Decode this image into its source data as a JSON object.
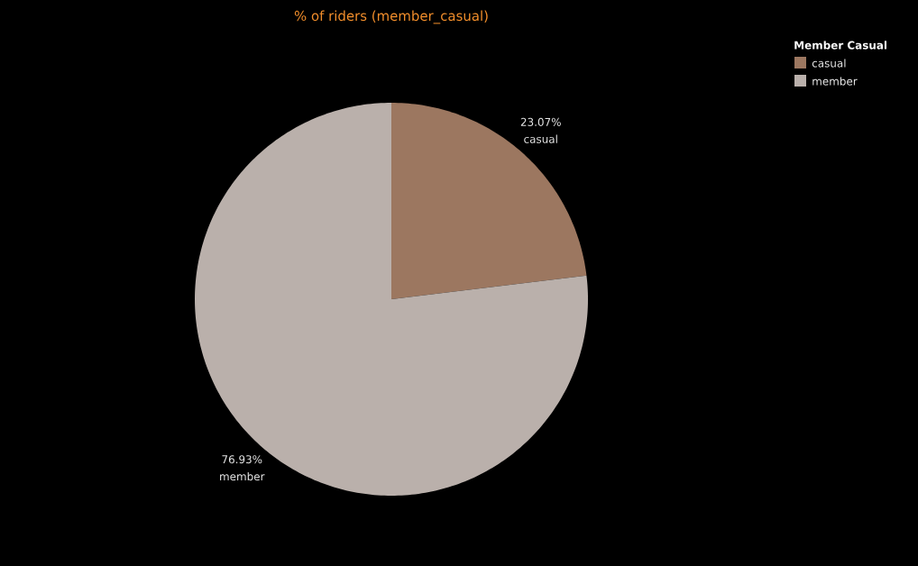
{
  "chart_data": {
    "type": "pie",
    "title": "% of riders (member_casual)",
    "legend_title": "Member Casual",
    "legend": "top right",
    "categories": [
      "casual",
      "member"
    ],
    "values": [
      23.07,
      76.93
    ],
    "value_labels": [
      "23.07%",
      "76.93%"
    ],
    "colors": [
      "#9c7760",
      "#bab0ab"
    ]
  }
}
